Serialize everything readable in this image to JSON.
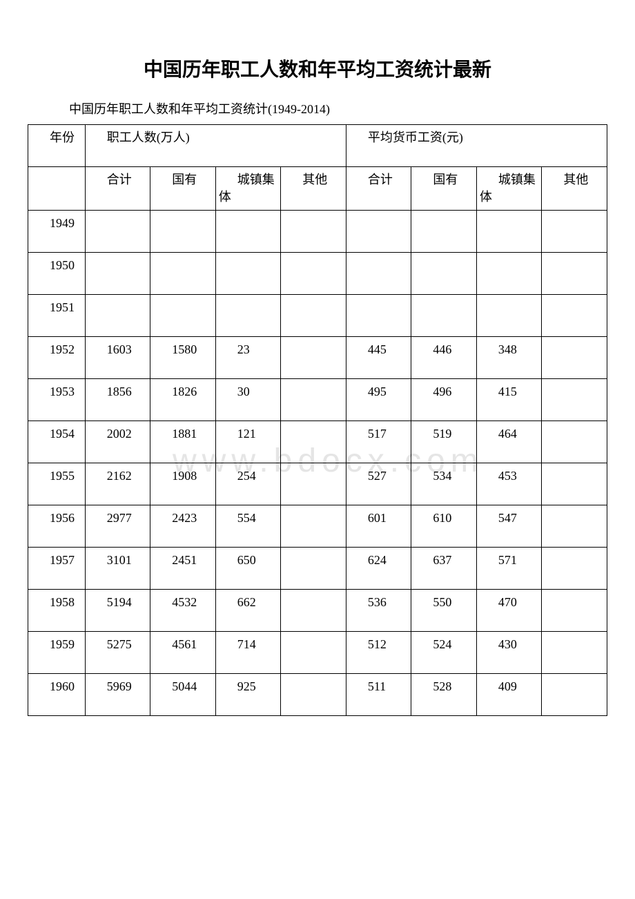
{
  "title": "中国历年职工人数和年平均工资统计最新",
  "subtitle": "中国历年职工人数和年平均工资统计(1949-2014)",
  "watermark": "www.bdocx.com",
  "table": {
    "header_row1": {
      "year": "年份",
      "group1": "职工人数(万人)",
      "group2": "平均货币工资(元)"
    },
    "header_row2": {
      "c1": "合计",
      "c2": "国有",
      "c3": "城镇集体",
      "c4": "其他",
      "c5": "合计",
      "c6": "国有",
      "c7": "城镇集体",
      "c8": "其他"
    },
    "rows": [
      {
        "year": "1949",
        "cells": [
          "",
          "",
          "",
          "",
          "",
          "",
          "",
          ""
        ]
      },
      {
        "year": "1950",
        "cells": [
          "",
          "",
          "",
          "",
          "",
          "",
          "",
          ""
        ]
      },
      {
        "year": "1951",
        "cells": [
          "",
          "",
          "",
          "",
          "",
          "",
          "",
          ""
        ]
      },
      {
        "year": "1952",
        "cells": [
          "1603",
          "1580",
          "23",
          "",
          "445",
          "446",
          "348",
          ""
        ]
      },
      {
        "year": "1953",
        "cells": [
          "1856",
          "1826",
          "30",
          "",
          "495",
          "496",
          "415",
          ""
        ]
      },
      {
        "year": "1954",
        "cells": [
          "2002",
          "1881",
          "121",
          "",
          "517",
          "519",
          "464",
          ""
        ]
      },
      {
        "year": "1955",
        "cells": [
          "2162",
          "1908",
          "254",
          "",
          "527",
          "534",
          "453",
          ""
        ]
      },
      {
        "year": "1956",
        "cells": [
          "2977",
          "2423",
          "554",
          "",
          "601",
          "610",
          "547",
          ""
        ]
      },
      {
        "year": "1957",
        "cells": [
          "3101",
          "2451",
          "650",
          "",
          "624",
          "637",
          "571",
          ""
        ]
      },
      {
        "year": "1958",
        "cells": [
          "5194",
          "4532",
          "662",
          "",
          "536",
          "550",
          "470",
          ""
        ]
      },
      {
        "year": "1959",
        "cells": [
          "5275",
          "4561",
          "714",
          "",
          "512",
          "524",
          "430",
          ""
        ]
      },
      {
        "year": "1960",
        "cells": [
          "5969",
          "5044",
          "925",
          "",
          "511",
          "528",
          "409",
          ""
        ]
      }
    ]
  },
  "style": {
    "background": "#ffffff",
    "text_color": "#000000",
    "border_color": "#000000",
    "watermark_color": "#e5e5e5",
    "title_fontsize": 28,
    "body_fontsize": 18
  }
}
